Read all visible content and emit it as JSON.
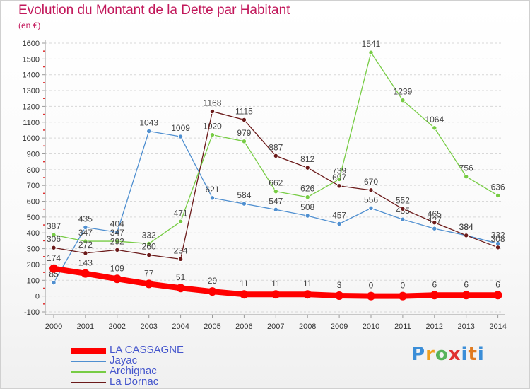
{
  "title": "Evolution du Montant de la Dette par Habitant",
  "unit": "(en €)",
  "logo": "Proxiti",
  "chart_data": {
    "type": "line",
    "categories": [
      "2000",
      "2001",
      "2002",
      "2003",
      "2004",
      "2005",
      "2006",
      "2007",
      "2008",
      "2009",
      "2010",
      "2011",
      "2012",
      "2013",
      "2014"
    ],
    "ylim": [
      -100,
      1600
    ],
    "yticks": [
      -100,
      0,
      100,
      200,
      300,
      400,
      500,
      600,
      700,
      800,
      900,
      1000,
      1100,
      1200,
      1300,
      1400,
      1500,
      1600
    ],
    "grid": "dashed-horizontal",
    "legend_position": "bottom-left",
    "series": [
      {
        "name": "LA CASSAGNE",
        "color": "#ff0000",
        "width": 8,
        "values": [
          174,
          143,
          109,
          77,
          51,
          29,
          11,
          11,
          11,
          3,
          0,
          0,
          6,
          6,
          6
        ]
      },
      {
        "name": "Jayac",
        "color": "#4f8fd0",
        "width": 1.3,
        "values": [
          85,
          435,
          404,
          1043,
          1009,
          621,
          584,
          547,
          508,
          457,
          556,
          485,
          427,
          384,
          332
        ]
      },
      {
        "name": "Archignac",
        "color": "#77cc44",
        "width": 1.3,
        "values": [
          387,
          347,
          347,
          332,
          471,
          1020,
          979,
          662,
          626,
          739,
          1541,
          1239,
          1064,
          756,
          636
        ]
      },
      {
        "name": "La Dornac",
        "color": "#6b1a1a",
        "width": 1.3,
        "values": [
          306,
          272,
          292,
          260,
          234,
          1168,
          1115,
          887,
          812,
          697,
          670,
          552,
          465,
          384,
          308
        ]
      }
    ]
  }
}
